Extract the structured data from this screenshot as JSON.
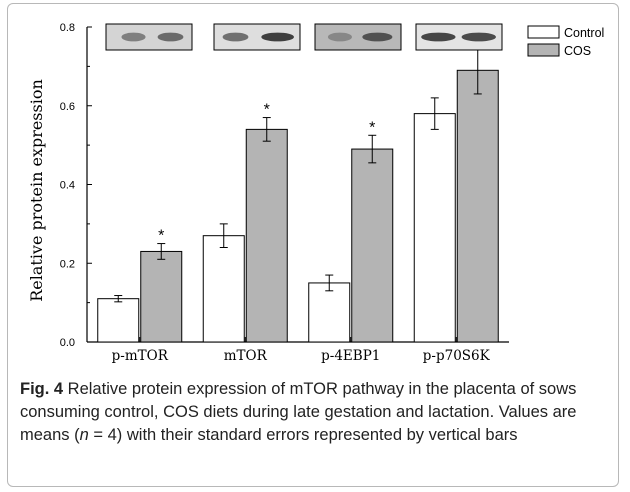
{
  "chart_data": {
    "type": "bar",
    "categories": [
      "p-mTOR",
      "mTOR",
      "p-4EBP1",
      "p-p70S6K"
    ],
    "series": [
      {
        "name": "Control",
        "color": "#ffffff",
        "values": [
          0.11,
          0.27,
          0.15,
          0.58
        ],
        "errors": [
          0.008,
          0.03,
          0.02,
          0.04
        ]
      },
      {
        "name": "COS",
        "color": "#b4b4b4",
        "values": [
          0.23,
          0.54,
          0.49,
          0.69
        ],
        "errors": [
          0.02,
          0.03,
          0.035,
          0.06
        ]
      }
    ],
    "significance": [
      "*",
      "*",
      "*",
      ""
    ],
    "ylabel": "Relative protein expression",
    "ylim": [
      0,
      0.8
    ],
    "yticks": [
      0.0,
      0.2,
      0.4,
      0.6,
      0.8
    ],
    "grid": false,
    "legend": "top-right",
    "blot_images": [
      "p-mTOR-blot",
      "mTOR-blot",
      "p-4EBP1-blot",
      "p-p70S6K-blot"
    ]
  },
  "caption": {
    "label": "Fig. 4",
    "text_1": " Relative protein expression of mTOR pathway in the placenta of sows consuming control, COS diets during late gestation and lactation. Values are means (",
    "n_symbol": "n",
    "text_2": " = 4) with their standard errors represented by vertical bars"
  }
}
